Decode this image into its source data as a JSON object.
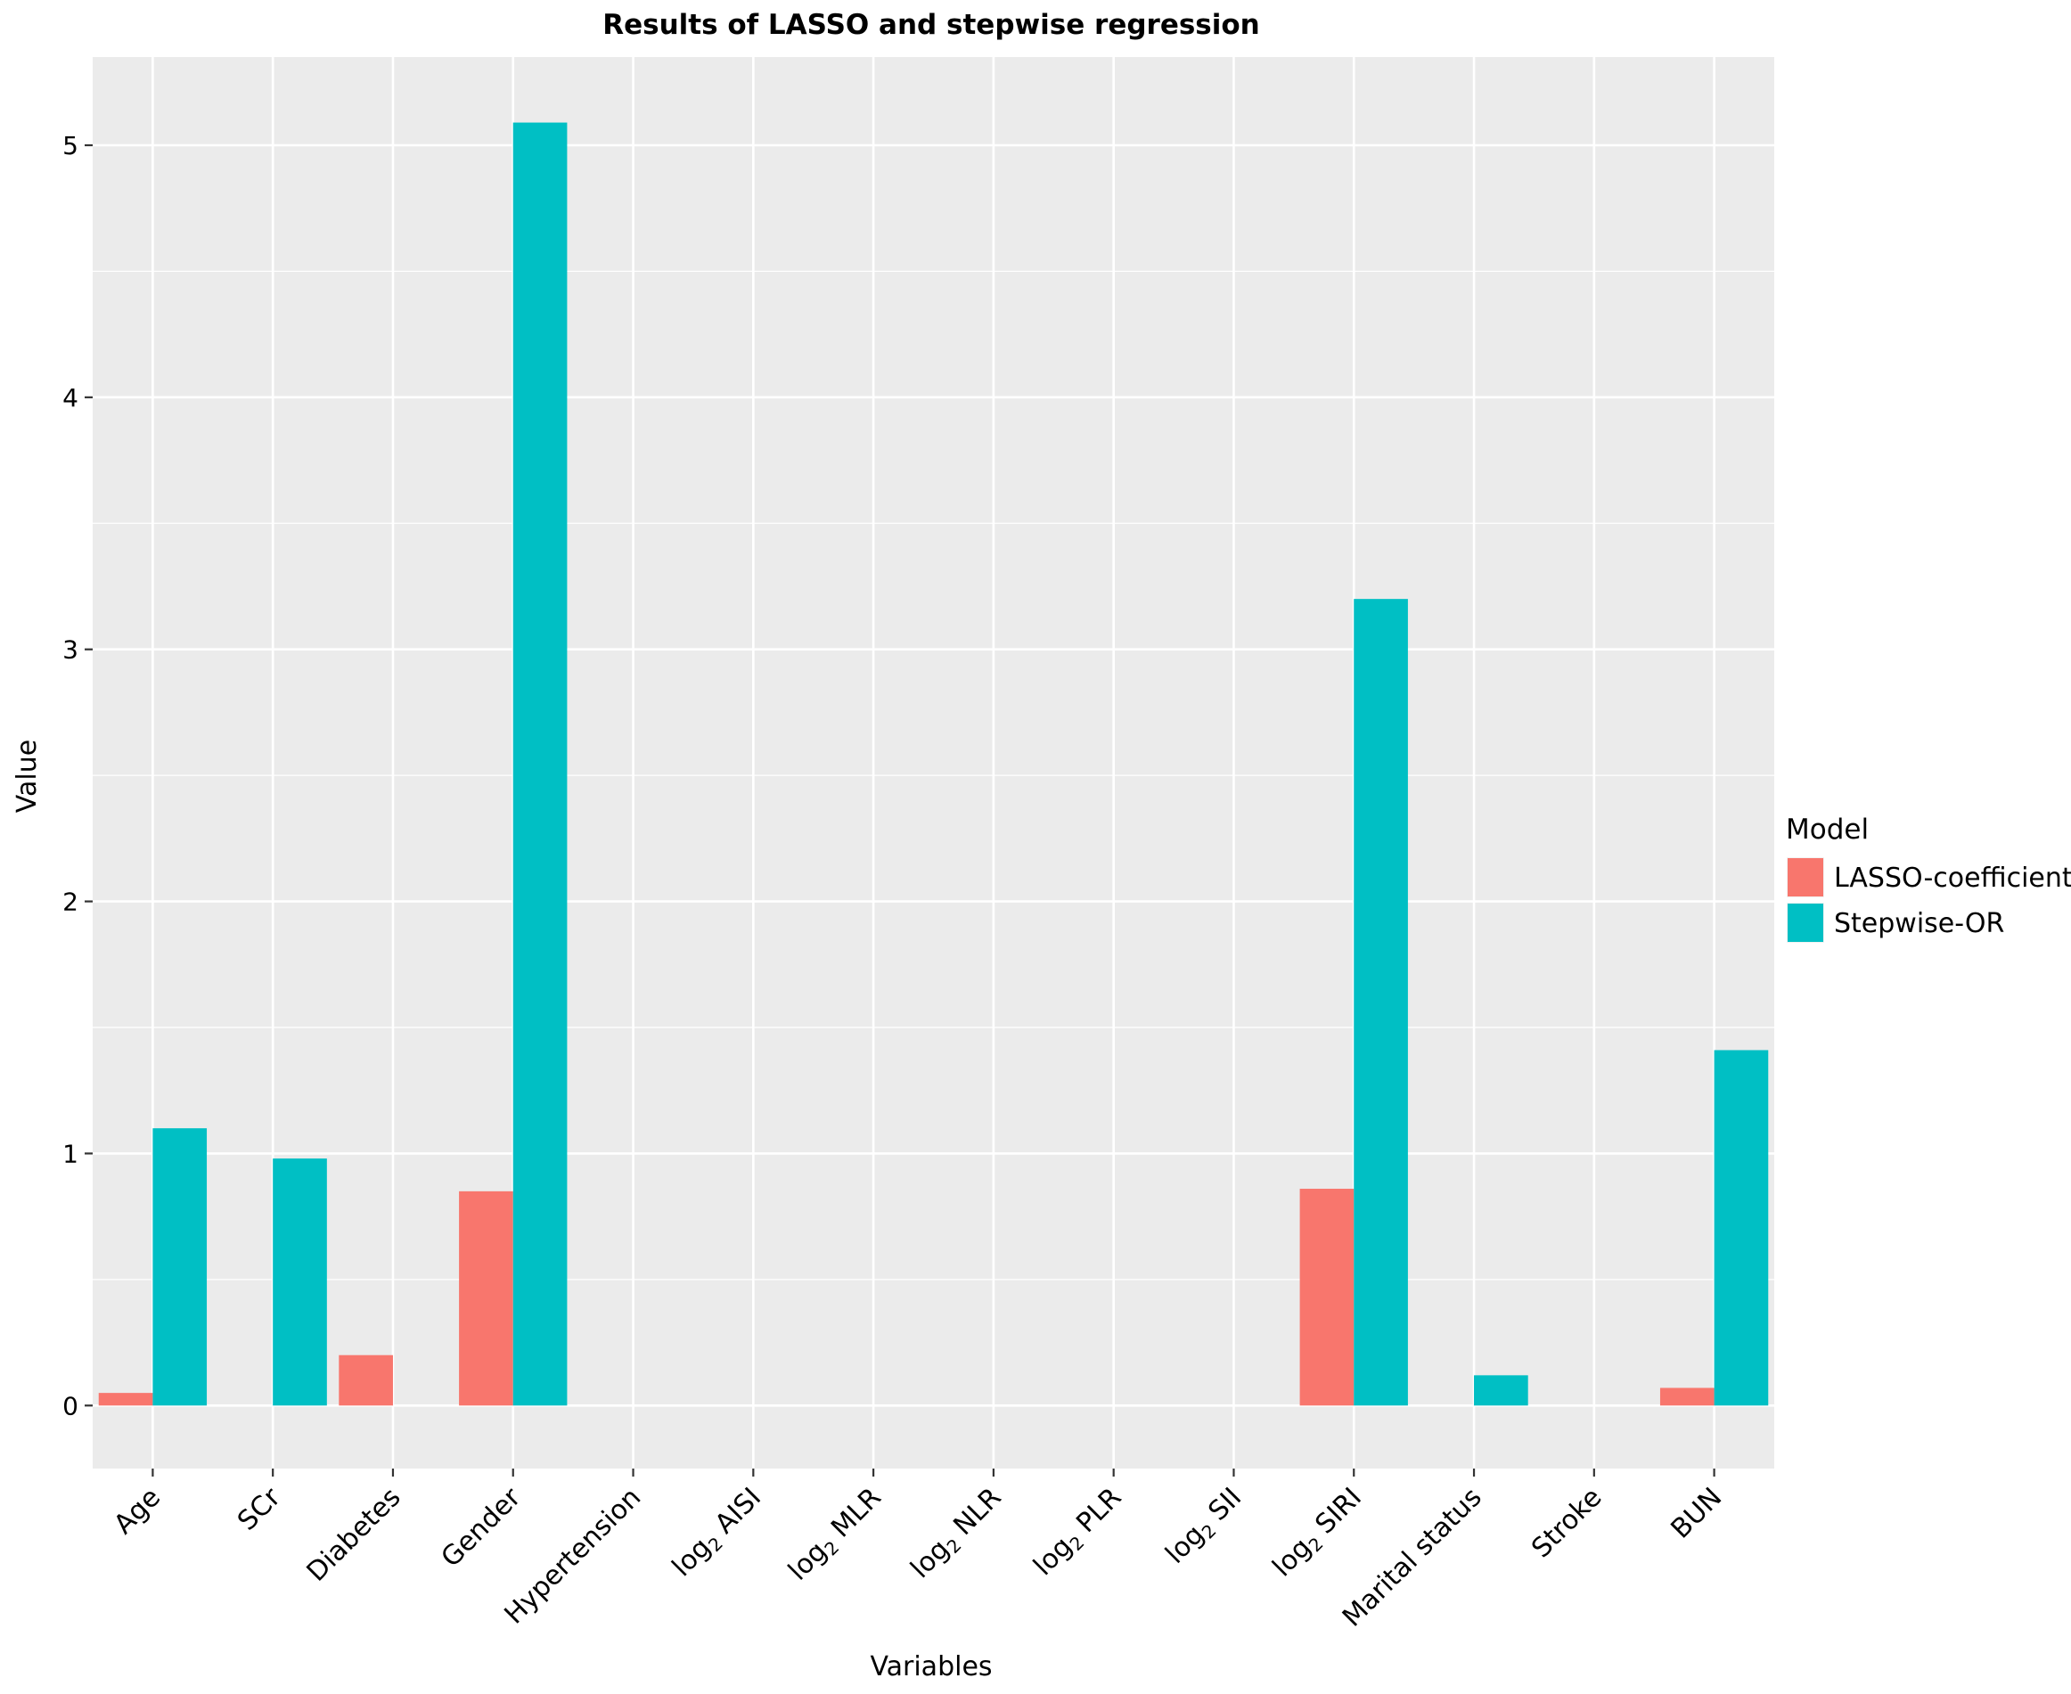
{
  "chart_data": {
    "type": "bar",
    "title": "Results of LASSO and stepwise regression",
    "xlabel": "Variables",
    "ylabel": "Value",
    "ylim": [
      -0.25,
      5.35
    ],
    "yticks": [
      0,
      1,
      2,
      3,
      4,
      5
    ],
    "grid": true,
    "legend_position": "right",
    "categories": [
      {
        "prefix": "Age",
        "sub": "",
        "suffix": ""
      },
      {
        "prefix": "SCr",
        "sub": "",
        "suffix": ""
      },
      {
        "prefix": "Diabetes",
        "sub": "",
        "suffix": ""
      },
      {
        "prefix": "Gender",
        "sub": "",
        "suffix": ""
      },
      {
        "prefix": "Hypertension",
        "sub": "",
        "suffix": ""
      },
      {
        "prefix": "log",
        "sub": "2",
        "suffix": " AISI"
      },
      {
        "prefix": "log",
        "sub": "2",
        "suffix": " MLR"
      },
      {
        "prefix": "log",
        "sub": "2",
        "suffix": " NLR"
      },
      {
        "prefix": "log",
        "sub": "2",
        "suffix": " PLR"
      },
      {
        "prefix": "log",
        "sub": "2",
        "suffix": " SII"
      },
      {
        "prefix": "log",
        "sub": "2",
        "suffix": " SIRI"
      },
      {
        "prefix": "Marital status",
        "sub": "",
        "suffix": ""
      },
      {
        "prefix": "Stroke",
        "sub": "",
        "suffix": ""
      },
      {
        "prefix": "BUN",
        "sub": "",
        "suffix": ""
      }
    ],
    "legend_title": "Model",
    "series": [
      {
        "name": "LASSO-coefficient",
        "color": "#F8766D",
        "values": [
          0.05,
          0,
          0.2,
          0.85,
          0,
          0,
          0,
          0,
          0,
          0,
          0.86,
          0,
          0,
          0.07
        ]
      },
      {
        "name": "Stepwise-OR",
        "color": "#00BFC4",
        "values": [
          1.1,
          0.98,
          0,
          5.09,
          0,
          0,
          0,
          0,
          0,
          0,
          3.2,
          0.12,
          0,
          1.41
        ]
      }
    ],
    "panel_background": "#EBEBEB",
    "grid_color": "#FFFFFF"
  }
}
